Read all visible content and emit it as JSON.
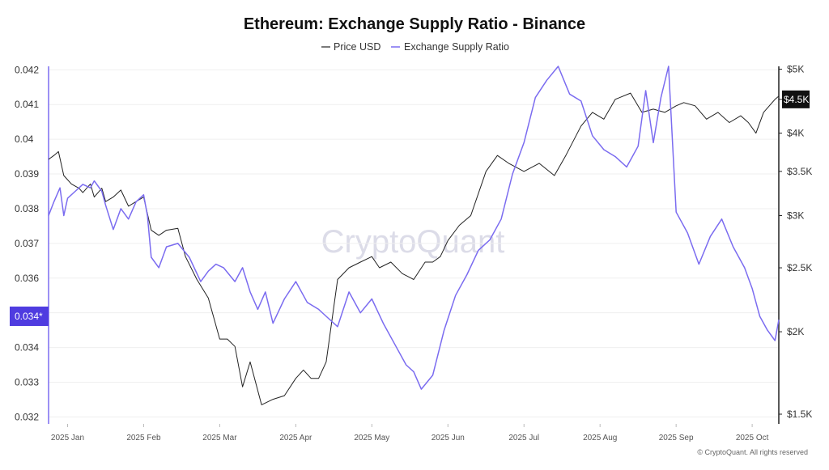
{
  "chart_data": {
    "type": "line",
    "title": "Ethereum: Exchange Supply Ratio - Binance",
    "legend": [
      {
        "name": "Price USD",
        "color": "#222222"
      },
      {
        "name": "Exchange Supply Ratio",
        "color": "#7b6cf0"
      }
    ],
    "legend_position": "top-center",
    "grid": true,
    "x_tick_labels": [
      "2025 Jan",
      "2025 Feb",
      "2025 Mar",
      "2025 Apr",
      "2025 May",
      "2025 Jun",
      "2025 Jul",
      "2025 Aug",
      "2025 Sep",
      "2025 Oct"
    ],
    "x_range_months": [
      -0.25,
      9.35
    ],
    "left_axis": {
      "ticks": [
        0.032,
        0.033,
        0.034,
        0.035,
        0.036,
        0.037,
        0.038,
        0.039,
        0.04,
        0.041,
        0.042
      ],
      "tick_labels": [
        "0.032",
        "0.033",
        "0.034",
        "",
        "0.036",
        "0.037",
        "0.038",
        "0.039",
        "0.04",
        "0.041",
        "0.042"
      ],
      "range": [
        0.0318,
        0.0421
      ],
      "current_value_label": "0.034*",
      "current_value": 0.0349
    },
    "right_axis": {
      "scale": "log",
      "ticks": [
        1500,
        2000,
        2500,
        3000,
        3500,
        4000,
        4500,
        5000
      ],
      "tick_labels": [
        "$1.5K",
        "$2K",
        "",
        "$3K",
        "$3.5K",
        "$4K",
        "",
        "$5K"
      ],
      "special_ticks": [
        {
          "value": 2500,
          "label": "$2.5K"
        }
      ],
      "range": [
        1450,
        5050
      ],
      "current_value_label": "$4.5K",
      "current_value": 4500
    },
    "series": [
      {
        "name": "Price USD",
        "axis": "right",
        "x": [
          -0.25,
          -0.18,
          -0.12,
          -0.05,
          0.05,
          0.15,
          0.2,
          0.3,
          0.35,
          0.45,
          0.5,
          0.6,
          0.7,
          0.8,
          0.9,
          1.0,
          1.1,
          1.2,
          1.3,
          1.45,
          1.55,
          1.7,
          1.85,
          2.0,
          2.1,
          2.2,
          2.3,
          2.4,
          2.55,
          2.7,
          2.85,
          3.0,
          3.1,
          3.2,
          3.3,
          3.4,
          3.55,
          3.7,
          3.85,
          4.0,
          4.1,
          4.25,
          4.4,
          4.55,
          4.7,
          4.8,
          4.9,
          5.0,
          5.15,
          5.3,
          5.5,
          5.65,
          5.8,
          6.0,
          6.2,
          6.4,
          6.55,
          6.75,
          6.9,
          7.05,
          7.2,
          7.4,
          7.55,
          7.7,
          7.85,
          8.0,
          8.1,
          8.25,
          8.4,
          8.55,
          8.7,
          8.85,
          8.95,
          9.05,
          9.15,
          9.3,
          9.35
        ],
        "values": [
          3650,
          3700,
          3750,
          3450,
          3350,
          3300,
          3250,
          3350,
          3200,
          3300,
          3150,
          3200,
          3280,
          3100,
          3150,
          3200,
          2850,
          2800,
          2850,
          2870,
          2600,
          2400,
          2250,
          1950,
          1950,
          1900,
          1650,
          1800,
          1550,
          1580,
          1600,
          1700,
          1750,
          1700,
          1700,
          1800,
          2400,
          2500,
          2550,
          2600,
          2500,
          2550,
          2450,
          2400,
          2550,
          2550,
          2600,
          2750,
          2900,
          3000,
          3500,
          3700,
          3600,
          3500,
          3600,
          3450,
          3700,
          4100,
          4300,
          4200,
          4500,
          4600,
          4300,
          4350,
          4300,
          4400,
          4450,
          4400,
          4200,
          4300,
          4150,
          4250,
          4150,
          4000,
          4300,
          4500,
          4550
        ]
      },
      {
        "name": "Exchange Supply Ratio",
        "axis": "left",
        "x": [
          -0.25,
          -0.18,
          -0.1,
          -0.05,
          0.0,
          0.1,
          0.2,
          0.3,
          0.35,
          0.45,
          0.5,
          0.6,
          0.7,
          0.8,
          0.9,
          1.0,
          1.05,
          1.1,
          1.2,
          1.3,
          1.45,
          1.6,
          1.75,
          1.85,
          1.95,
          2.05,
          2.2,
          2.3,
          2.4,
          2.5,
          2.6,
          2.7,
          2.85,
          3.0,
          3.15,
          3.3,
          3.4,
          3.55,
          3.7,
          3.85,
          4.0,
          4.15,
          4.3,
          4.45,
          4.55,
          4.65,
          4.8,
          4.95,
          5.1,
          5.25,
          5.4,
          5.55,
          5.7,
          5.85,
          6.0,
          6.15,
          6.3,
          6.45,
          6.6,
          6.75,
          6.9,
          7.05,
          7.2,
          7.35,
          7.5,
          7.6,
          7.7,
          7.8,
          7.9,
          8.0,
          8.15,
          8.3,
          8.45,
          8.6,
          8.75,
          8.9,
          9.0,
          9.1,
          9.2,
          9.3,
          9.35
        ],
        "values": [
          0.0378,
          0.0382,
          0.0386,
          0.0378,
          0.0383,
          0.0385,
          0.0387,
          0.0386,
          0.0388,
          0.0385,
          0.0381,
          0.0374,
          0.038,
          0.0377,
          0.0382,
          0.0384,
          0.0378,
          0.0366,
          0.0363,
          0.0369,
          0.037,
          0.0366,
          0.0359,
          0.0362,
          0.0364,
          0.0363,
          0.0359,
          0.0363,
          0.0356,
          0.0351,
          0.0356,
          0.0347,
          0.0354,
          0.0359,
          0.0353,
          0.0351,
          0.0349,
          0.0346,
          0.0356,
          0.035,
          0.0354,
          0.0347,
          0.0341,
          0.0335,
          0.0333,
          0.0328,
          0.0332,
          0.0345,
          0.0355,
          0.0361,
          0.0368,
          0.0371,
          0.0377,
          0.039,
          0.0399,
          0.0412,
          0.0417,
          0.0421,
          0.0413,
          0.0411,
          0.0401,
          0.0397,
          0.0395,
          0.0392,
          0.0398,
          0.0414,
          0.0399,
          0.0412,
          0.0421,
          0.0379,
          0.0373,
          0.0364,
          0.0372,
          0.0377,
          0.0369,
          0.0363,
          0.0357,
          0.0349,
          0.0345,
          0.0342,
          0.0348
        ]
      }
    ],
    "watermark": "CryptoQuant",
    "copyright": "© CryptoQuant. All rights reserved"
  }
}
